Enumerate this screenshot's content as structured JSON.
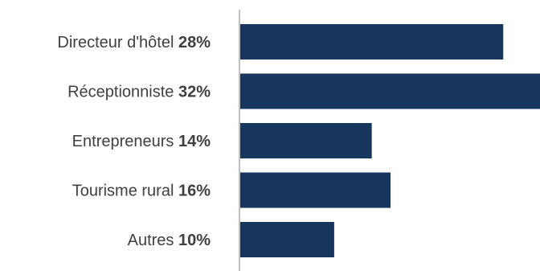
{
  "chart_data": {
    "type": "bar",
    "orientation": "horizontal",
    "categories": [
      "Directeur d'hôtel",
      "Réceptionniste",
      "Entrepreneurs",
      "Tourisme rural",
      "Autres"
    ],
    "values": [
      28,
      32,
      14,
      16,
      10
    ],
    "value_labels": [
      "28%",
      "32%",
      "14%",
      "16%",
      "10%"
    ],
    "unit": "%",
    "bar_color": "#17365d",
    "axis_color": "#7f7f7f",
    "grid": false,
    "legend": "none",
    "xlim": [
      0,
      32
    ]
  }
}
